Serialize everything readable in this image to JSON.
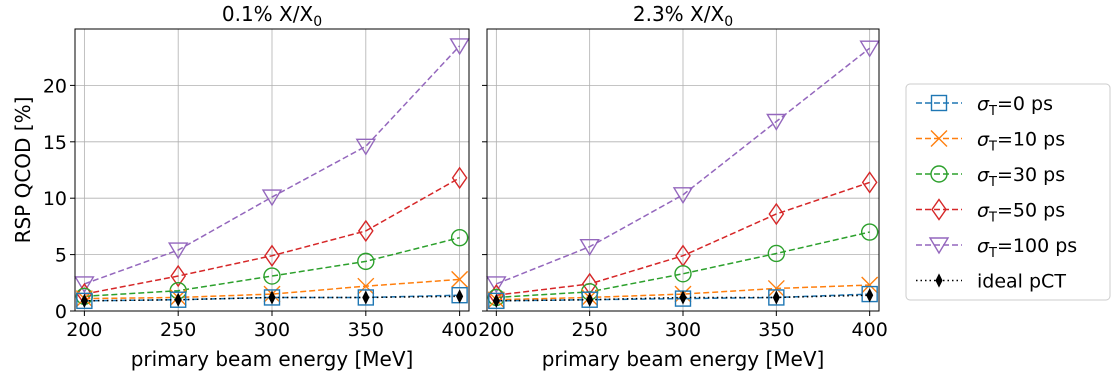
{
  "chart_data": [
    {
      "type": "line",
      "title": "0.1% X/X",
      "title_sub": "0",
      "xlabel": "primary beam energy [MeV]",
      "ylabel": "RSP QCOD [%]",
      "xlim": [
        195,
        405
      ],
      "ylim": [
        0,
        25
      ],
      "xticks": [
        "200",
        "250",
        "300",
        "350",
        "400"
      ],
      "yticks": [
        "0",
        "5",
        "10",
        "15",
        "20"
      ],
      "grid": true,
      "x": [
        200,
        250,
        300,
        350,
        400
      ],
      "series": [
        {
          "key": "s0",
          "values": [
            0.9,
            1.0,
            1.2,
            1.2,
            1.4
          ]
        },
        {
          "key": "s10",
          "values": [
            1.1,
            1.2,
            1.5,
            2.2,
            2.8
          ]
        },
        {
          "key": "s30",
          "values": [
            1.3,
            1.8,
            3.1,
            4.4,
            6.5
          ]
        },
        {
          "key": "s50",
          "values": [
            1.5,
            3.1,
            4.9,
            7.1,
            11.8
          ]
        },
        {
          "key": "s100",
          "values": [
            2.4,
            5.4,
            10.1,
            14.6,
            23.5
          ]
        },
        {
          "key": "ideal",
          "values": [
            0.9,
            1.0,
            1.2,
            1.2,
            1.3
          ]
        }
      ]
    },
    {
      "type": "line",
      "title": "2.3% X/X",
      "title_sub": "0",
      "xlabel": "primary beam energy [MeV]",
      "ylabel": "",
      "xlim": [
        195,
        405
      ],
      "ylim": [
        0,
        25
      ],
      "xticks": [
        "200",
        "250",
        "300",
        "350",
        "400"
      ],
      "yticks": [
        "0",
        "5",
        "10",
        "15",
        "20"
      ],
      "grid": true,
      "x": [
        200,
        250,
        300,
        350,
        400
      ],
      "series": [
        {
          "key": "s0",
          "values": [
            0.9,
            1.0,
            1.1,
            1.2,
            1.5
          ]
        },
        {
          "key": "s10",
          "values": [
            1.0,
            1.2,
            1.5,
            2.0,
            2.3
          ]
        },
        {
          "key": "s30",
          "values": [
            1.2,
            1.7,
            3.3,
            5.1,
            7.0
          ]
        },
        {
          "key": "s50",
          "values": [
            1.4,
            2.4,
            4.9,
            8.6,
            11.4
          ]
        },
        {
          "key": "s100",
          "values": [
            2.4,
            5.7,
            10.3,
            16.8,
            23.3
          ]
        },
        {
          "key": "ideal",
          "values": [
            0.9,
            1.0,
            1.2,
            1.2,
            1.4
          ]
        }
      ]
    }
  ],
  "legend": {
    "placement": "right",
    "entries": [
      {
        "key": "s0",
        "sym": "σ",
        "sub": "T",
        "text": "=0 ps",
        "color": "#1f77b4",
        "marker": "square",
        "line": "dashed"
      },
      {
        "key": "s10",
        "sym": "σ",
        "sub": "T",
        "text": "=10 ps",
        "color": "#ff7f0e",
        "marker": "x",
        "line": "dashed"
      },
      {
        "key": "s30",
        "sym": "σ",
        "sub": "T",
        "text": "=30 ps",
        "color": "#2ca02c",
        "marker": "circle",
        "line": "dashed"
      },
      {
        "key": "s50",
        "sym": "σ",
        "sub": "T",
        "text": "=50 ps",
        "color": "#d62728",
        "marker": "diamond",
        "line": "dashed"
      },
      {
        "key": "s100",
        "sym": "σ",
        "sub": "T",
        "text": "=100 ps",
        "color": "#9467bd",
        "marker": "triangle-down",
        "line": "dashed"
      },
      {
        "key": "ideal",
        "sym": "",
        "sub": "",
        "text": "ideal pCT",
        "color": "#000000",
        "marker": "thin-diamond",
        "line": "dotted"
      }
    ]
  }
}
